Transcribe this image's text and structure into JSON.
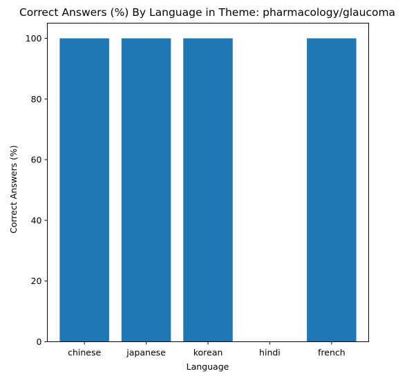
{
  "chart_data": {
    "type": "bar",
    "title": "Correct Answers (%) By Language in Theme: pharmacology/glaucoma",
    "xlabel": "Language",
    "ylabel": "Correct Answers (%)",
    "categories": [
      "chinese",
      "japanese",
      "korean",
      "hindi",
      "french"
    ],
    "values": [
      100,
      100,
      100,
      0,
      100
    ],
    "ylim": [
      0,
      105
    ],
    "yticks": [
      0,
      20,
      40,
      60,
      80,
      100
    ],
    "grid": false,
    "legend": "none",
    "bar_color": "#1f77b4"
  }
}
